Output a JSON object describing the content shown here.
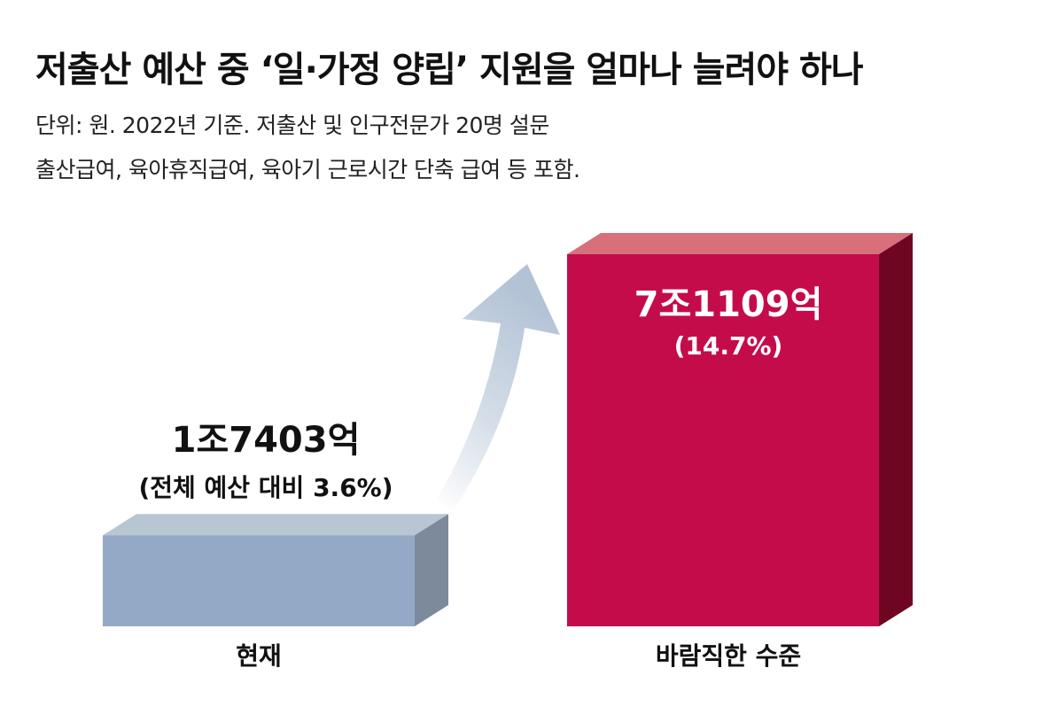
{
  "title": "저출산 예산 중 ‘일·가정 양립’ 지원을 얼마나 늘려야 하나",
  "subtitle_lines": [
    "단위: 원. 2022년 기준. 저출산 및 인구전문가 20명 설문",
    "출산급여, 육아휴직급여, 육아기 근로시간 단축 급여 등 포함."
  ],
  "colors": {
    "current_front": "#94a9c6",
    "current_top": "#b8c6d4",
    "current_side": "#7c8a9c",
    "desired_front": "#c40c4a",
    "desired_top": "#d7707a",
    "desired_side": "#6e0622",
    "arrow": "#b3c3d6"
  },
  "chart_data": {
    "type": "bar",
    "unit": "원",
    "categories": [
      "현재",
      "바람직한 수준"
    ],
    "values": [
      17403,
      71109
    ],
    "value_unit": "억 원",
    "value_labels": [
      "1조7403억",
      "7조1109억"
    ],
    "share_labels": [
      "(전체 예산 대비 3.6%)",
      "(14.7%)"
    ],
    "share_percent": [
      3.6,
      14.7
    ]
  }
}
